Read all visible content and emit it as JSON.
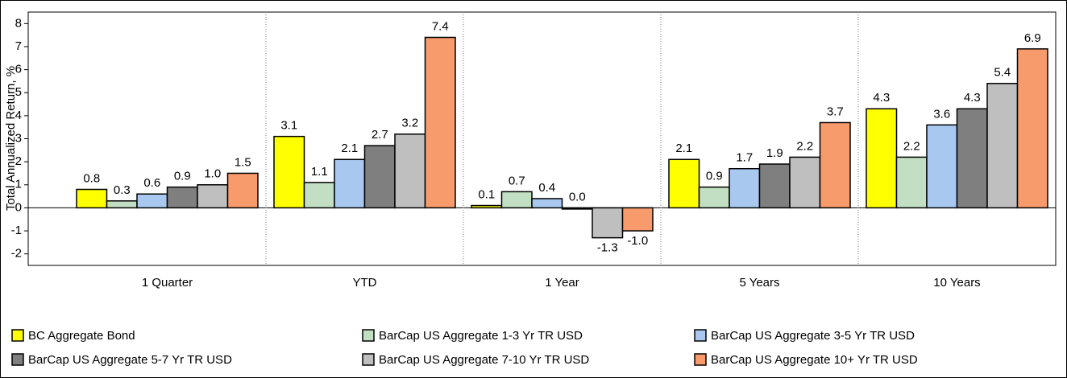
{
  "chart_data": {
    "type": "bar",
    "y_label": "Total Annualized Return, %",
    "categories": [
      "1 Quarter",
      "YTD",
      "1 Year",
      "5 Years",
      "10 Years"
    ],
    "series": [
      {
        "name": "BC Aggregate Bond",
        "color": "#ffff00",
        "values": [
          0.8,
          3.1,
          0.1,
          2.1,
          4.3
        ],
        "value_labels": [
          "0.8",
          "3.1",
          "0.1",
          "2.1",
          "4.3"
        ]
      },
      {
        "name": "BarCap US Aggregate 1-3 Yr TR USD",
        "color": "#c3dfc3",
        "values": [
          0.3,
          1.1,
          0.7,
          0.9,
          2.2
        ],
        "value_labels": [
          "0.3",
          "1.1",
          "0.7",
          "0.9",
          "2.2"
        ]
      },
      {
        "name": "BarCap US Aggregate 3-5 Yr TR USD",
        "color": "#a8c8f0",
        "values": [
          0.6,
          2.1,
          0.4,
          1.7,
          3.6
        ],
        "value_labels": [
          "0.6",
          "2.1",
          "0.4",
          "1.7",
          "3.6"
        ]
      },
      {
        "name": "BarCap US Aggregate 5-7 Yr TR USD",
        "color": "#7f7f7f",
        "values": [
          0.9,
          2.7,
          0.0,
          1.9,
          4.3
        ],
        "value_labels": [
          "0.9",
          "2.7",
          "0.0",
          "1.9",
          "4.3"
        ]
      },
      {
        "name": "BarCap US Aggregate 7-10 Yr TR USD",
        "color": "#bfbfbf",
        "values": [
          1.0,
          3.2,
          -1.3,
          2.2,
          5.4
        ],
        "value_labels": [
          "1.0",
          "3.2",
          "-1.3",
          "2.2",
          "5.4"
        ]
      },
      {
        "name": "BarCap US Aggregate 10+ Yr TR USD",
        "color": "#f79a6c",
        "values": [
          1.5,
          7.4,
          -1.0,
          3.7,
          6.9
        ],
        "value_labels": [
          "1.5",
          "7.4",
          "-1.0",
          "3.7",
          "6.9"
        ]
      }
    ],
    "ylim": [
      -2.5,
      8.5
    ],
    "yticks": [
      -2,
      -1,
      0,
      1,
      2,
      3,
      4,
      5,
      6,
      7,
      8
    ],
    "group_separators": true
  }
}
